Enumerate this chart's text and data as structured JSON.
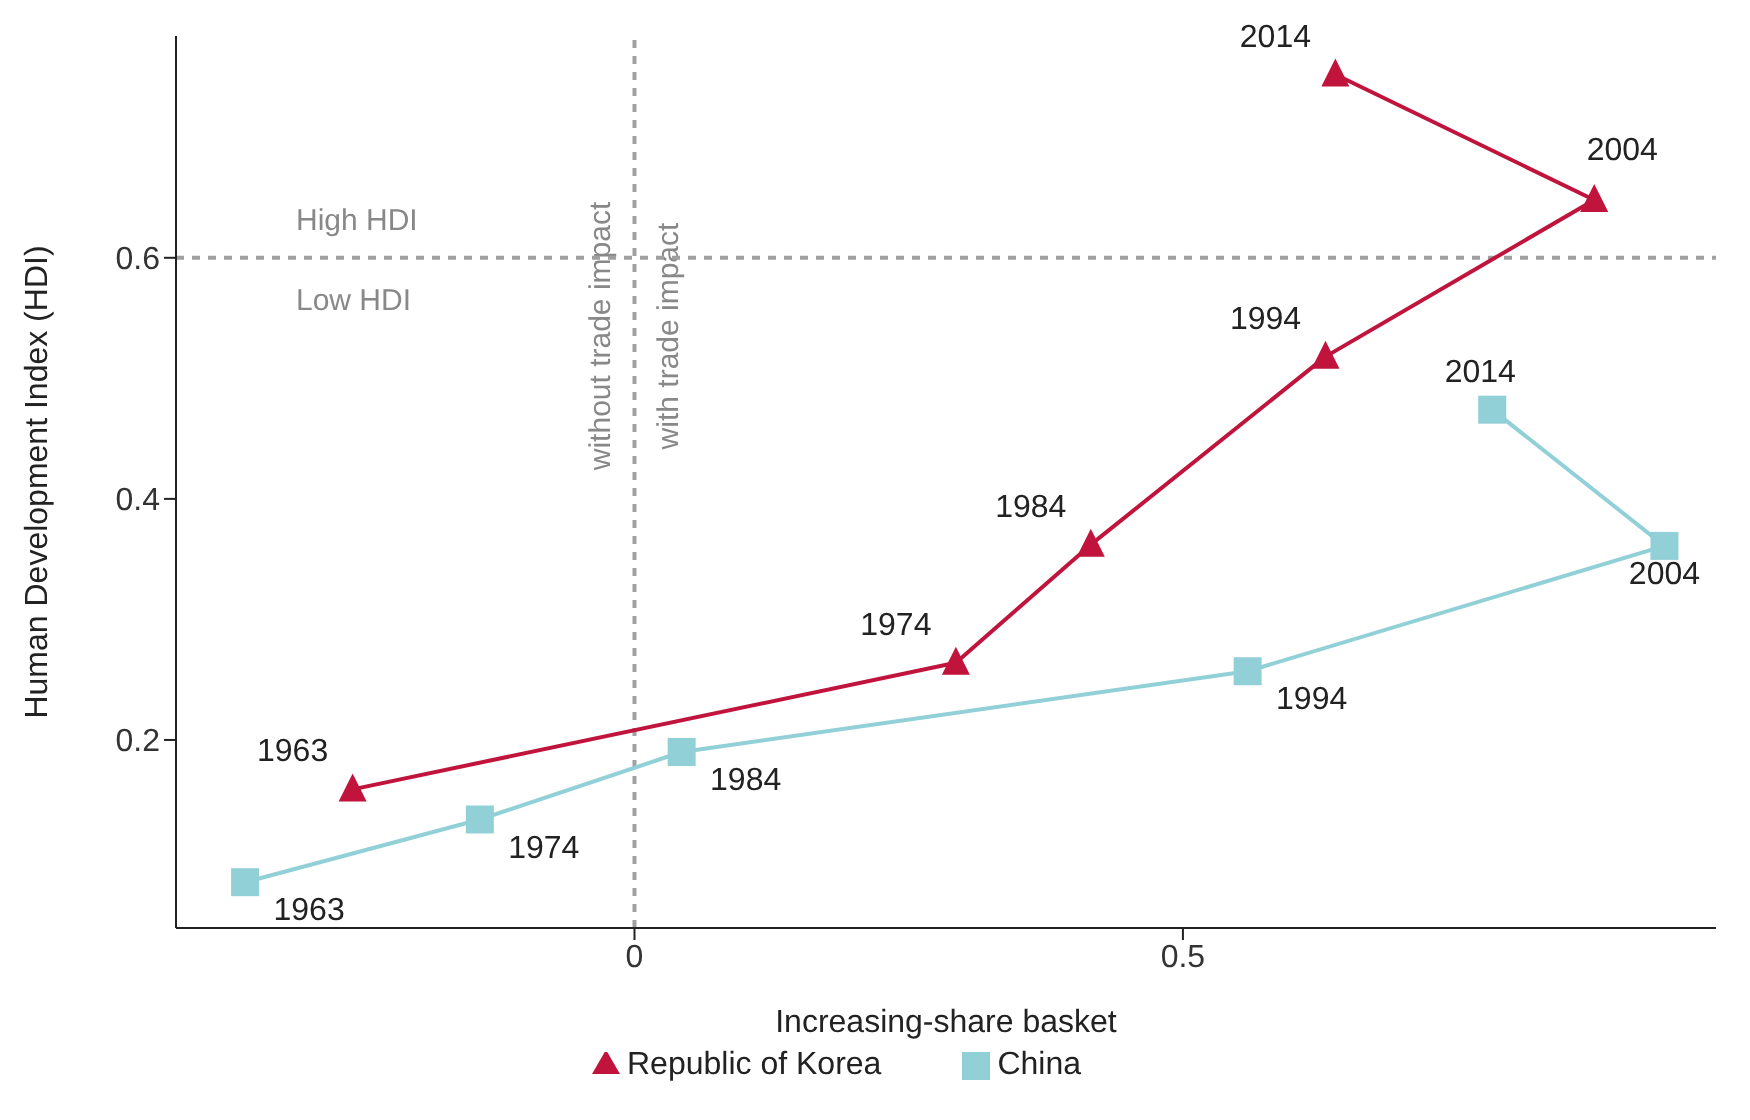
{
  "chart_data": {
    "type": "line",
    "xlabel": "Increasing-share basket",
    "ylabel": "Human Development Index (HDI)",
    "xlim": [
      -0.418,
      0.986
    ],
    "xticks": [
      0,
      0.5
    ],
    "ylim": [
      0.044,
      0.784
    ],
    "yticks": [
      0.2,
      0.4,
      0.6
    ],
    "legend": "bottom",
    "series": [
      {
        "name": "Republic of Korea",
        "color": "#c0143c",
        "marker": "triangle",
        "x": [
          -0.257,
          0.293,
          0.416,
          0.63,
          0.875,
          0.639
        ],
        "values": [
          0.159,
          0.264,
          0.362,
          0.518,
          0.648,
          0.752
        ]
      },
      {
        "name": "China",
        "color": "#92d0d8",
        "marker": "square",
        "x": [
          -0.355,
          -0.141,
          0.043,
          0.559,
          0.939,
          0.782
        ],
        "values": [
          0.082,
          0.134,
          0.19,
          0.257,
          0.361,
          0.474
        ]
      }
    ],
    "ref_lines": [
      {
        "axis": "x",
        "value": 0,
        "label": "without trade impact",
        "color": "#a0a0a0",
        "line_style": "dashed"
      },
      {
        "axis": "y",
        "value": 0.6,
        "label": "High HDI",
        "color": "#a0a0a0",
        "line_style": "dashed"
      }
    ],
    "annotations": [
      {
        "text": "with trade impact",
        "x": 0
      },
      {
        "text": "Low HDI",
        "y": 0.6
      },
      {
        "text": "1963",
        "x": -0.257,
        "y": 0.159
      },
      {
        "text": "1974",
        "x": 0.293,
        "y": 0.264
      },
      {
        "text": "1984",
        "x": 0.416,
        "y": 0.362
      },
      {
        "text": "1994",
        "x": 0.63,
        "y": 0.518
      },
      {
        "text": "2004",
        "x": 0.875,
        "y": 0.648
      },
      {
        "text": "2014",
        "x": 0.639,
        "y": 0.752
      },
      {
        "text": "1963",
        "x": -0.355,
        "y": 0.082
      },
      {
        "text": "1974",
        "x": -0.141,
        "y": 0.134
      },
      {
        "text": "1984",
        "x": 0.043,
        "y": 0.19
      },
      {
        "text": "1994",
        "x": 0.559,
        "y": 0.257
      },
      {
        "text": "2004",
        "x": 0.939,
        "y": 0.361
      },
      {
        "text": "2014",
        "x": 0.782,
        "y": 0.474
      }
    ]
  }
}
